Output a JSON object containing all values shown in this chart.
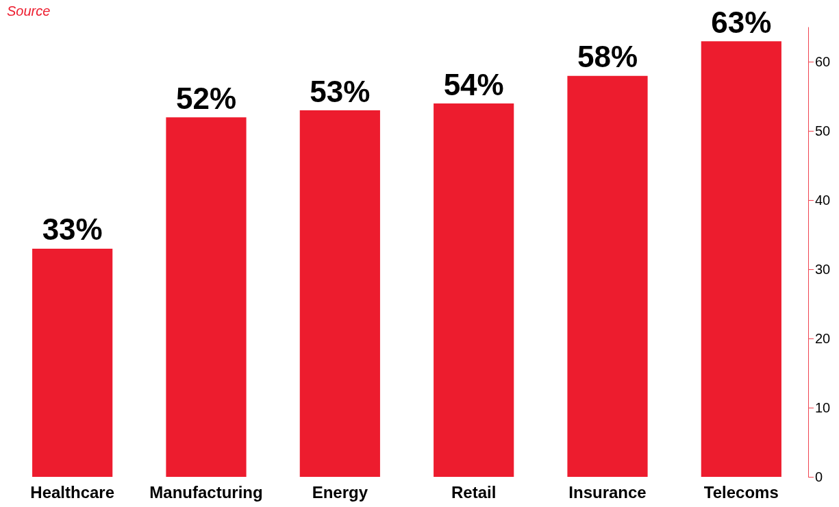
{
  "chart_data": {
    "type": "bar",
    "categories": [
      "Healthcare",
      "Manufacturing",
      "Energy",
      "Retail",
      "Insurance",
      "Telecoms"
    ],
    "values": [
      33,
      52,
      53,
      54,
      58,
      63
    ],
    "value_labels": [
      "33%",
      "52%",
      "53%",
      "54%",
      "58%",
      "63%"
    ],
    "color": "#ed1c2e",
    "ylim": [
      0,
      65
    ],
    "yticks": [
      0,
      10,
      20,
      30,
      40,
      50,
      60
    ],
    "grid": false,
    "annotations": [
      "Source"
    ]
  }
}
